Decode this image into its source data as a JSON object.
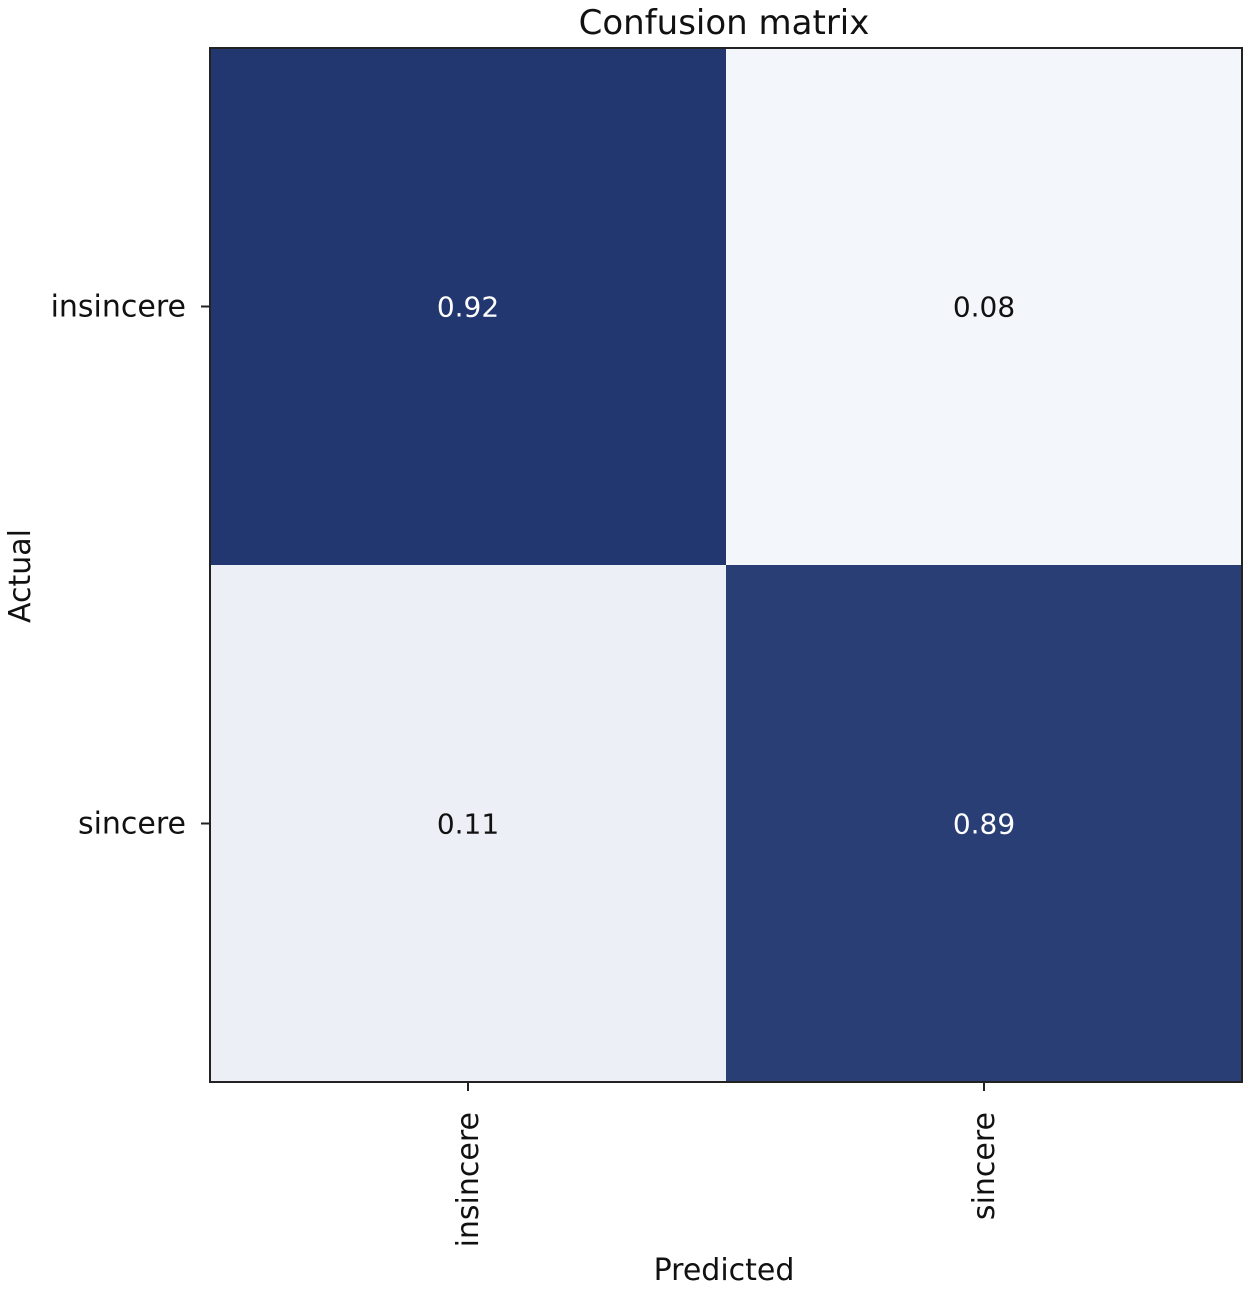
{
  "chart_data": {
    "type": "heatmap",
    "title": "Confusion matrix",
    "xlabel": "Predicted",
    "ylabel": "Actual",
    "x_categories": [
      "insincere",
      "sincere"
    ],
    "y_categories": [
      "insincere",
      "sincere"
    ],
    "values": [
      [
        0.92,
        0.08
      ],
      [
        0.11,
        0.89
      ]
    ],
    "value_labels": [
      [
        "0.92",
        "0.08"
      ],
      [
        "0.11",
        "0.89"
      ]
    ],
    "colormap": {
      "low": "#f3f7fb",
      "high": "#22376f",
      "text_on_dark": "#ffffff",
      "text_on_light": "#111111"
    },
    "grid": false,
    "legend": "none"
  }
}
